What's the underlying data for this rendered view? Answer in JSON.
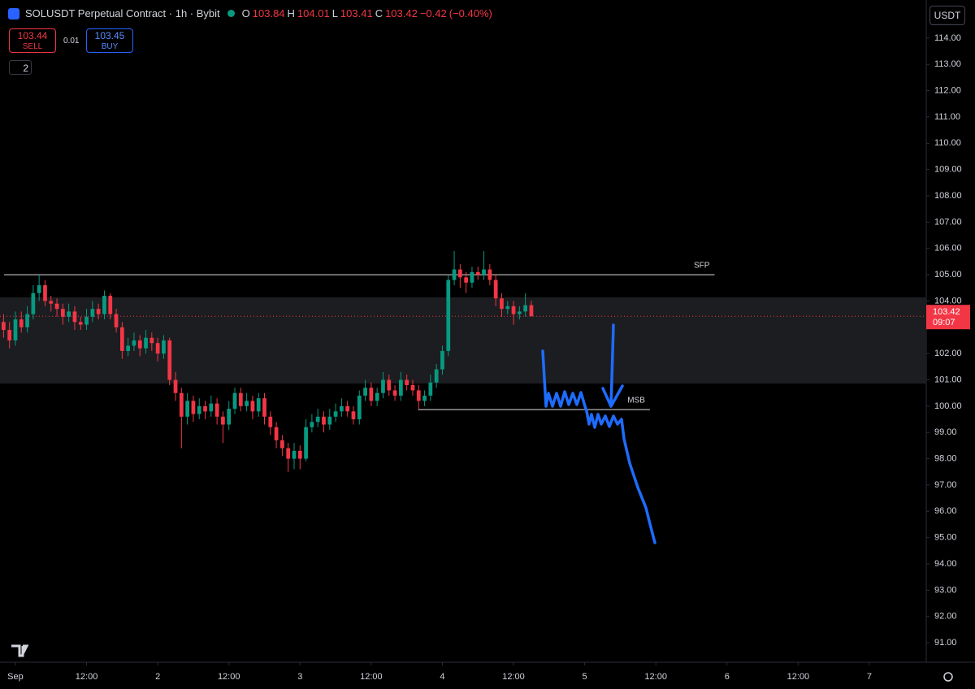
{
  "header": {
    "symbol": "SOLUSDT Perpetual Contract · 1h · Bybit",
    "open_label": "O",
    "open": 103.84,
    "high_label": "H",
    "high": 104.01,
    "low_label": "L",
    "low": 103.41,
    "close_label": "C",
    "close": 103.42,
    "change": {
      "value": -0.42,
      "label": "−0.42"
    },
    "change_pct": {
      "value": -0.4,
      "label": "(−0.40%)"
    }
  },
  "trade": {
    "sell_price": 103.44,
    "sell_label": "SELL",
    "spread": 0.01,
    "buy_price": 103.45,
    "buy_label": "BUY"
  },
  "indicators_count": 2,
  "currency": "USDT",
  "chart_data": {
    "type": "candlestick",
    "up_color": "#089981",
    "down_color": "#f23645",
    "xlim": [
      -2.6,
      153.6
    ],
    "ylim": [
      90.26,
      115.45
    ],
    "xticks": [
      {
        "value": 0,
        "label": "Sep"
      },
      {
        "value": 12,
        "label": "12:00"
      },
      {
        "value": 24,
        "label": "2"
      },
      {
        "value": 36,
        "label": "12:00"
      },
      {
        "value": 48,
        "label": "3"
      },
      {
        "value": 60,
        "label": "12:00"
      },
      {
        "value": 72,
        "label": "4"
      },
      {
        "value": 84,
        "label": "12:00"
      },
      {
        "value": 96,
        "label": "5"
      },
      {
        "value": 108,
        "label": "12:00"
      },
      {
        "value": 120,
        "label": "6"
      },
      {
        "value": 132,
        "label": "12:00"
      },
      {
        "value": 144,
        "label": "7"
      }
    ],
    "yticks": [
      {
        "value": 91,
        "label": "91.00"
      },
      {
        "value": 92,
        "label": "92.00"
      },
      {
        "value": 93,
        "label": "93.00"
      },
      {
        "value": 94,
        "label": "94.00"
      },
      {
        "value": 95,
        "label": "95.00"
      },
      {
        "value": 96,
        "label": "96.00"
      },
      {
        "value": 97,
        "label": "97.00"
      },
      {
        "value": 98,
        "label": "98.00"
      },
      {
        "value": 99,
        "label": "99.00"
      },
      {
        "value": 100,
        "label": "100.00"
      },
      {
        "value": 101,
        "label": "101.00"
      },
      {
        "value": 102,
        "label": "102.00"
      },
      {
        "value": 104,
        "label": "104.00"
      },
      {
        "value": 105,
        "label": "105.00"
      },
      {
        "value": 106,
        "label": "106.00"
      },
      {
        "value": 107,
        "label": "107.00"
      },
      {
        "value": 108,
        "label": "108.00"
      },
      {
        "value": 109,
        "label": "109.00"
      },
      {
        "value": 110,
        "label": "110.00"
      },
      {
        "value": 111,
        "label": "111.00"
      },
      {
        "value": 112,
        "label": "112.00"
      },
      {
        "value": 113,
        "label": "113.00"
      },
      {
        "value": 114,
        "label": "114.00"
      }
    ],
    "x": [
      -2,
      -1,
      0,
      1,
      2,
      3,
      4,
      5,
      6,
      7,
      8,
      9,
      10,
      11,
      12,
      13,
      14,
      15,
      16,
      17,
      18,
      19,
      20,
      21,
      22,
      23,
      24,
      25,
      26,
      27,
      28,
      29,
      30,
      31,
      32,
      33,
      34,
      35,
      36,
      37,
      38,
      39,
      40,
      41,
      42,
      43,
      44,
      45,
      46,
      47,
      48,
      49,
      50,
      51,
      52,
      53,
      54,
      55,
      56,
      57,
      58,
      59,
      60,
      61,
      62,
      63,
      64,
      65,
      66,
      67,
      68,
      69,
      70,
      71,
      72,
      73,
      74,
      75,
      76,
      77,
      78,
      79,
      80,
      81,
      82,
      83,
      84,
      85,
      86,
      87
    ],
    "ohlc": [
      [
        103.2,
        103.5,
        102.6,
        102.9
      ],
      [
        102.9,
        103.2,
        102.2,
        102.5
      ],
      [
        102.5,
        103.6,
        102.3,
        103.3
      ],
      [
        103.3,
        103.6,
        102.8,
        103.0
      ],
      [
        103.0,
        103.8,
        102.8,
        103.5
      ],
      [
        103.5,
        104.6,
        103.3,
        104.3
      ],
      [
        104.3,
        105.0,
        104.0,
        104.6
      ],
      [
        104.6,
        104.8,
        103.8,
        104.0
      ],
      [
        104.0,
        104.2,
        103.6,
        103.9
      ],
      [
        103.9,
        104.1,
        103.4,
        103.7
      ],
      [
        103.7,
        103.9,
        103.1,
        103.4
      ],
      [
        103.4,
        103.9,
        103.2,
        103.6
      ],
      [
        103.6,
        103.8,
        102.9,
        103.2
      ],
      [
        103.2,
        103.4,
        102.9,
        103.1
      ],
      [
        103.1,
        103.7,
        102.9,
        103.4
      ],
      [
        103.4,
        104.0,
        103.2,
        103.7
      ],
      [
        103.7,
        103.9,
        103.3,
        103.5
      ],
      [
        103.5,
        104.4,
        103.3,
        104.2
      ],
      [
        104.2,
        104.3,
        103.3,
        103.5
      ],
      [
        103.5,
        103.7,
        102.8,
        103.0
      ],
      [
        103.0,
        103.2,
        101.8,
        102.1
      ],
      [
        102.1,
        102.6,
        101.9,
        102.3
      ],
      [
        102.3,
        102.8,
        102.1,
        102.5
      ],
      [
        102.5,
        102.7,
        101.9,
        102.2
      ],
      [
        102.2,
        102.9,
        102.0,
        102.6
      ],
      [
        102.6,
        102.8,
        102.1,
        102.4
      ],
      [
        102.4,
        102.6,
        101.7,
        102.0
      ],
      [
        102.0,
        102.7,
        101.8,
        102.5
      ],
      [
        102.5,
        102.6,
        100.8,
        101.0
      ],
      [
        101.0,
        101.3,
        100.2,
        100.5
      ],
      [
        100.5,
        100.7,
        98.4,
        99.6
      ],
      [
        99.6,
        100.5,
        99.3,
        100.2
      ],
      [
        100.2,
        100.4,
        99.4,
        99.7
      ],
      [
        99.7,
        100.3,
        99.5,
        100.0
      ],
      [
        100.0,
        100.2,
        99.5,
        99.8
      ],
      [
        99.8,
        100.4,
        99.6,
        100.1
      ],
      [
        100.1,
        100.3,
        99.3,
        99.6
      ],
      [
        99.6,
        99.8,
        98.6,
        99.3
      ],
      [
        99.3,
        100.2,
        99.1,
        99.9
      ],
      [
        99.9,
        100.7,
        99.7,
        100.5
      ],
      [
        100.5,
        100.7,
        99.8,
        100.0
      ],
      [
        100.0,
        100.5,
        99.8,
        100.2
      ],
      [
        100.2,
        100.4,
        99.5,
        99.8
      ],
      [
        99.8,
        100.5,
        99.6,
        100.3
      ],
      [
        100.3,
        100.5,
        99.3,
        99.6
      ],
      [
        99.6,
        99.8,
        98.9,
        99.2
      ],
      [
        99.2,
        99.4,
        98.4,
        98.7
      ],
      [
        98.7,
        98.9,
        98.1,
        98.4
      ],
      [
        98.4,
        98.6,
        97.5,
        98.0
      ],
      [
        98.0,
        98.6,
        97.6,
        98.3
      ],
      [
        98.3,
        98.5,
        97.6,
        98.0
      ],
      [
        98.0,
        99.5,
        97.9,
        99.2
      ],
      [
        99.2,
        99.7,
        99.0,
        99.4
      ],
      [
        99.4,
        99.9,
        99.2,
        99.6
      ],
      [
        99.6,
        99.8,
        99.0,
        99.3
      ],
      [
        99.3,
        99.9,
        99.1,
        99.6
      ],
      [
        99.6,
        100.1,
        99.4,
        99.8
      ],
      [
        99.8,
        100.3,
        99.6,
        100.0
      ],
      [
        100.0,
        100.2,
        99.6,
        99.8
      ],
      [
        99.8,
        100.0,
        99.3,
        99.5
      ],
      [
        99.5,
        100.6,
        99.3,
        100.4
      ],
      [
        100.4,
        101.0,
        100.2,
        100.7
      ],
      [
        100.7,
        100.9,
        100.0,
        100.2
      ],
      [
        100.2,
        100.7,
        100.0,
        100.5
      ],
      [
        100.5,
        101.3,
        100.3,
        101.0
      ],
      [
        101.0,
        101.2,
        100.4,
        100.6
      ],
      [
        100.6,
        100.8,
        100.2,
        100.4
      ],
      [
        100.4,
        101.3,
        100.2,
        101.0
      ],
      [
        101.0,
        101.2,
        100.6,
        100.8
      ],
      [
        100.8,
        101.0,
        100.4,
        100.6
      ],
      [
        100.6,
        100.8,
        99.9,
        100.2
      ],
      [
        100.2,
        100.6,
        100.0,
        100.4
      ],
      [
        100.4,
        101.2,
        100.2,
        100.9
      ],
      [
        100.9,
        101.6,
        100.7,
        101.4
      ],
      [
        101.4,
        102.3,
        101.2,
        102.1
      ],
      [
        102.1,
        105.0,
        101.9,
        104.8
      ],
      [
        104.8,
        105.9,
        104.6,
        105.2
      ],
      [
        105.2,
        105.4,
        104.5,
        104.9
      ],
      [
        104.9,
        105.1,
        104.3,
        104.7
      ],
      [
        104.7,
        105.3,
        104.5,
        105.1
      ],
      [
        105.1,
        105.3,
        104.8,
        105.0
      ],
      [
        105.0,
        105.9,
        104.8,
        105.2
      ],
      [
        105.2,
        105.4,
        104.6,
        104.8
      ],
      [
        104.8,
        105.0,
        103.8,
        104.1
      ],
      [
        104.1,
        104.3,
        103.4,
        103.7
      ],
      [
        103.7,
        104.0,
        103.5,
        103.8
      ],
      [
        103.8,
        104.0,
        103.1,
        103.5
      ],
      [
        103.5,
        103.8,
        103.3,
        103.6
      ],
      [
        103.6,
        104.3,
        103.4,
        103.84
      ],
      [
        103.84,
        104.01,
        103.41,
        103.42
      ]
    ],
    "zone": {
      "low": 100.86,
      "high": 104.14
    },
    "levels": [
      {
        "label": "SFP",
        "value": 105.0,
        "x_range": [
          -1.9,
          117.9
        ]
      },
      {
        "label": "MSB",
        "value": 99.87,
        "x_range": [
          67.9,
          107.0
        ]
      }
    ],
    "last_price": 103.42,
    "countdown": "09:07"
  }
}
